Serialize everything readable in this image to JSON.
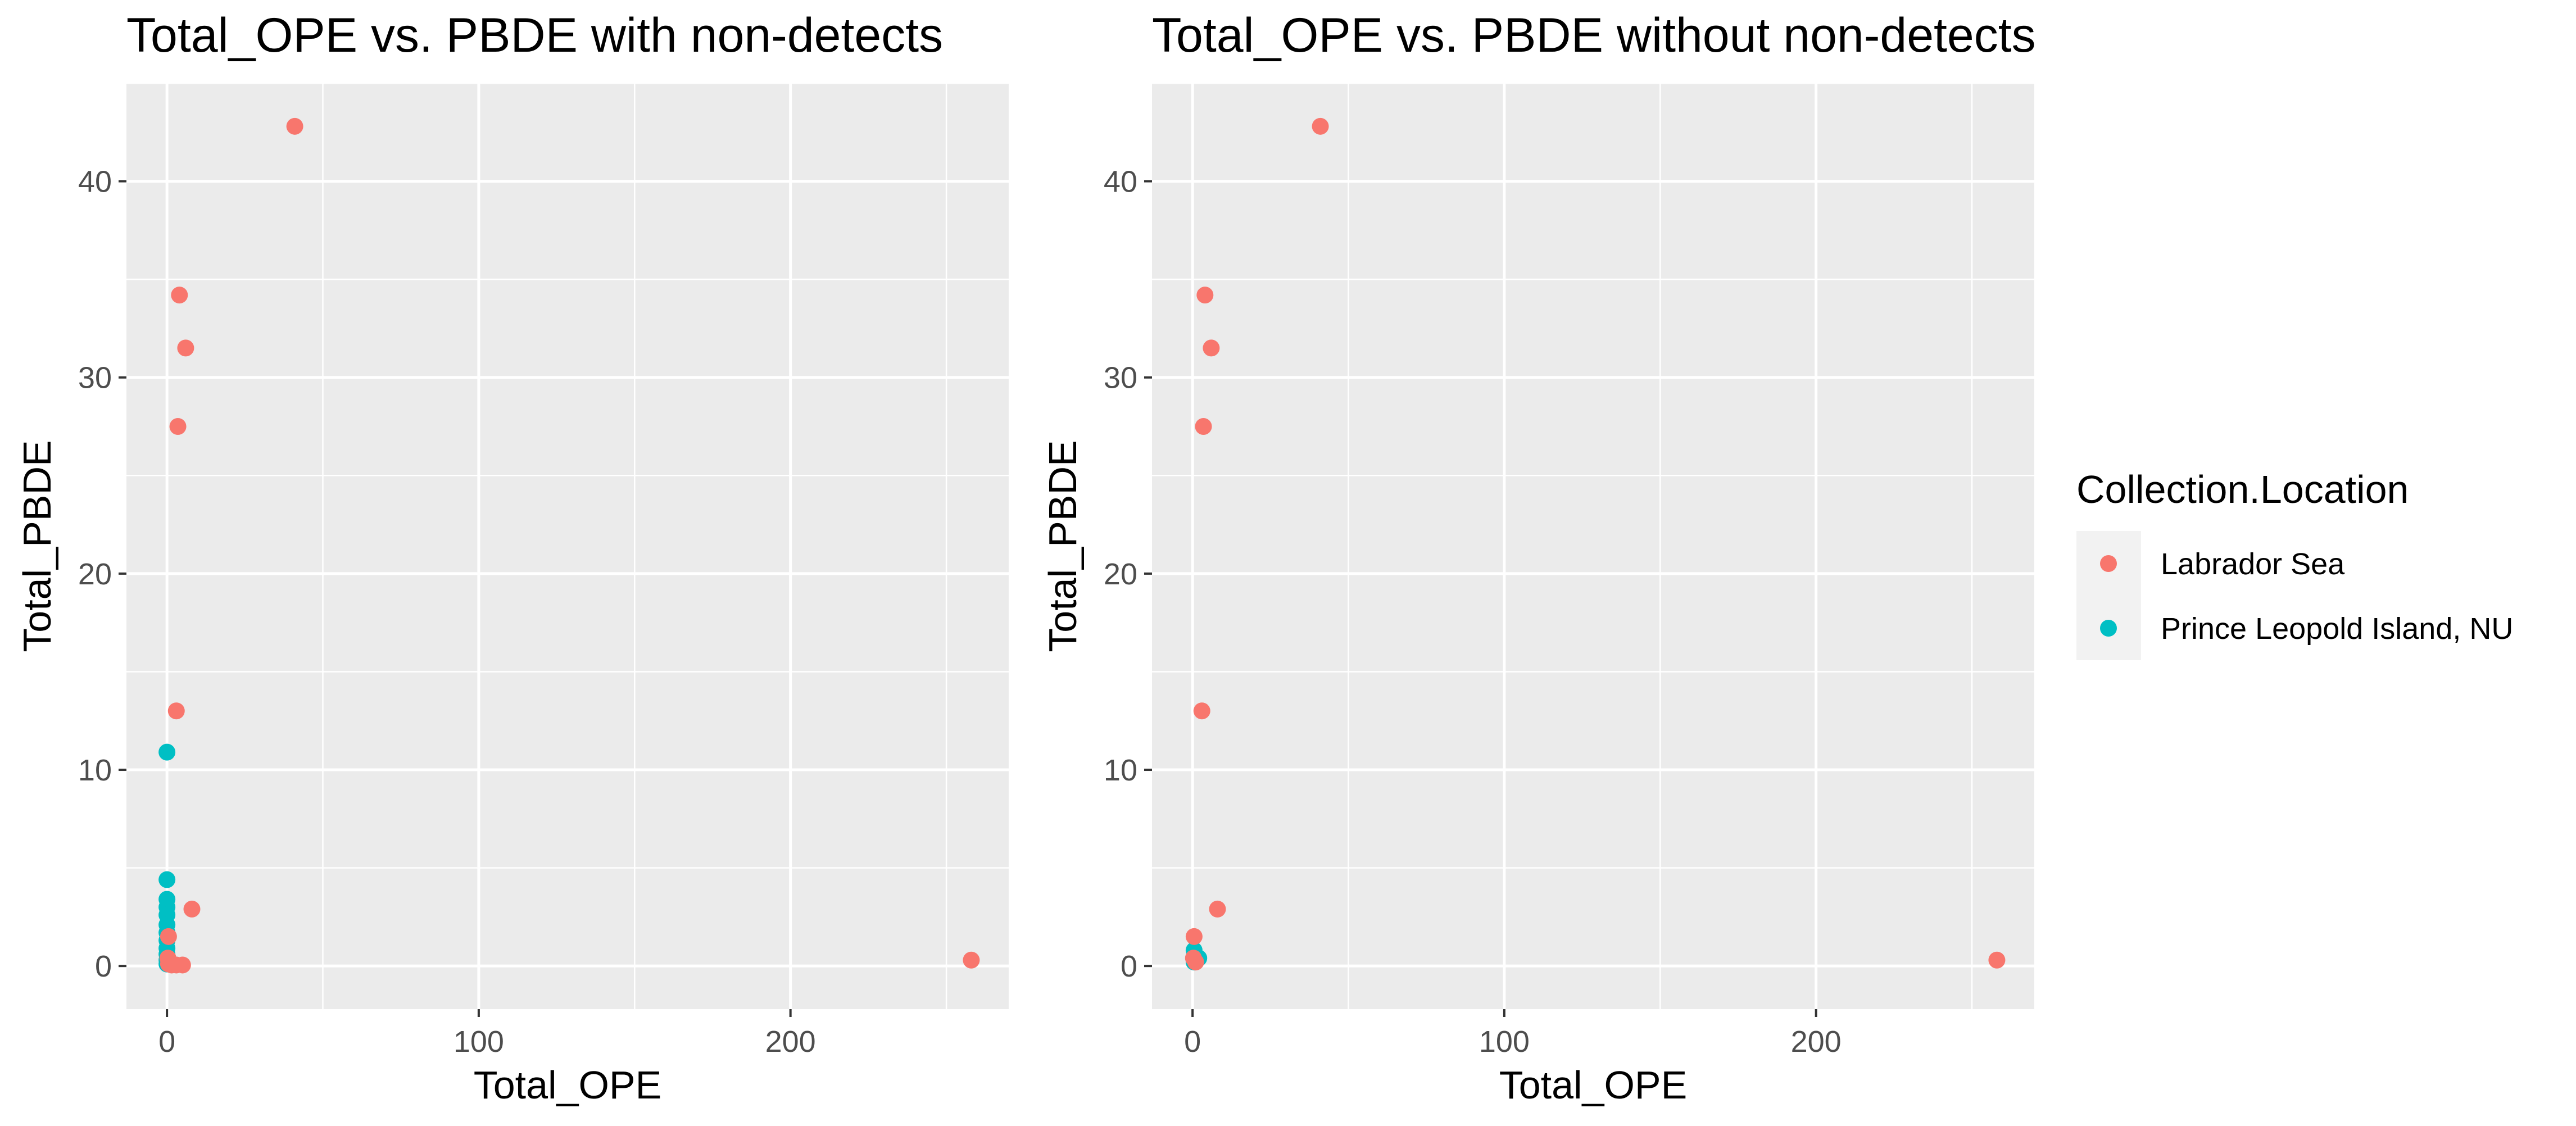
{
  "chart_data": [
    {
      "type": "scatter",
      "title": "Total_OPE vs. PBDE with non-detects",
      "xlabel": "Total_OPE",
      "ylabel": "Total_PBDE",
      "xlim": [
        -13,
        270
      ],
      "ylim": [
        -2.2,
        45
      ],
      "xticks": [
        0,
        100,
        200
      ],
      "yticks": [
        0,
        10,
        20,
        30,
        40
      ],
      "grid": true,
      "series": [
        {
          "name": "Labrador Sea",
          "color": "#F8766D",
          "points": [
            {
              "x": 41,
              "y": 42.8
            },
            {
              "x": 4,
              "y": 34.2
            },
            {
              "x": 6,
              "y": 31.5
            },
            {
              "x": 3.5,
              "y": 27.5
            },
            {
              "x": 3,
              "y": 13.0
            },
            {
              "x": 8,
              "y": 2.9
            },
            {
              "x": 0.5,
              "y": 1.5
            },
            {
              "x": 0.3,
              "y": 0.4
            },
            {
              "x": 0.5,
              "y": 0.1
            },
            {
              "x": 1.5,
              "y": 0.05
            },
            {
              "x": 3,
              "y": 0.05
            },
            {
              "x": 5,
              "y": 0.05
            },
            {
              "x": 258,
              "y": 0.3
            }
          ]
        },
        {
          "name": "Prince Leopold Island, NU",
          "color": "#00BFC4",
          "points": [
            {
              "x": 0,
              "y": 10.9
            },
            {
              "x": 0,
              "y": 4.4
            },
            {
              "x": 0,
              "y": 3.4
            },
            {
              "x": 0,
              "y": 3.0
            },
            {
              "x": 0,
              "y": 2.6
            },
            {
              "x": 0,
              "y": 2.1
            },
            {
              "x": 0,
              "y": 1.7
            },
            {
              "x": 0,
              "y": 1.3
            },
            {
              "x": 0,
              "y": 0.9
            },
            {
              "x": 0,
              "y": 0.6
            },
            {
              "x": 0,
              "y": 0.3
            },
            {
              "x": 0,
              "y": 0.1
            }
          ]
        }
      ]
    },
    {
      "type": "scatter",
      "title": "Total_OPE vs. PBDE without non-detects",
      "xlabel": "Total_OPE",
      "ylabel": "Total_PBDE",
      "xlim": [
        -13,
        270
      ],
      "ylim": [
        -2.2,
        45
      ],
      "xticks": [
        0,
        100,
        200
      ],
      "yticks": [
        0,
        10,
        20,
        30,
        40
      ],
      "grid": true,
      "series": [
        {
          "name": "Labrador Sea",
          "color": "#F8766D",
          "points": [
            {
              "x": 41,
              "y": 42.8
            },
            {
              "x": 4,
              "y": 34.2
            },
            {
              "x": 6,
              "y": 31.5
            },
            {
              "x": 3.5,
              "y": 27.5
            },
            {
              "x": 3,
              "y": 13.0
            },
            {
              "x": 8,
              "y": 2.9
            },
            {
              "x": 0.5,
              "y": 1.5
            },
            {
              "x": 0.3,
              "y": 0.4
            },
            {
              "x": 1,
              "y": 0.2
            },
            {
              "x": 258,
              "y": 0.3
            }
          ]
        },
        {
          "name": "Prince Leopold Island, NU",
          "color": "#00BFC4",
          "points": [
            {
              "x": 0.5,
              "y": 0.8
            },
            {
              "x": 1,
              "y": 0.5
            },
            {
              "x": 2,
              "y": 0.4
            },
            {
              "x": 0.5,
              "y": 0.2
            }
          ]
        }
      ]
    }
  ],
  "legend": {
    "title": "Collection.Location",
    "position": "right",
    "items": [
      {
        "label": "Labrador Sea",
        "color": "#F8766D"
      },
      {
        "label": "Prince Leopold Island, NU",
        "color": "#00BFC4"
      }
    ]
  }
}
